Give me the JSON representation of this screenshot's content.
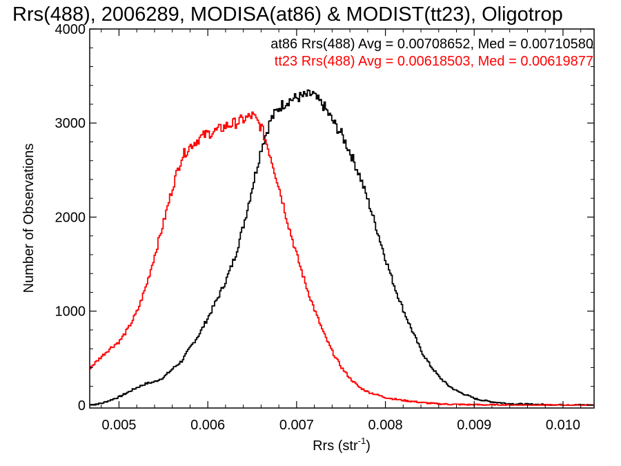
{
  "chart_data": {
    "type": "line",
    "title": "Rrs(488), 2006289, MODISA(at86) & MODIST(tt23), Oligotrop",
    "xlabel": "Rrs (str",
    "xlabel_sup": "-1",
    "xlabel_close": ")",
    "ylabel": "Number of Observations",
    "xlim": [
      0.00467,
      0.01035
    ],
    "ylim": [
      -30,
      4000
    ],
    "x_ticks": [
      "0.005",
      "0.006",
      "0.007",
      "0.008",
      "0.009",
      "0.010"
    ],
    "x_tick_values": [
      0.005,
      0.006,
      0.007,
      0.008,
      0.009,
      0.01
    ],
    "y_ticks": [
      "0",
      "1000",
      "2000",
      "3000",
      "4000"
    ],
    "y_tick_values": [
      0,
      1000,
      2000,
      3000,
      4000
    ],
    "grid": false,
    "legend": "top-right",
    "annotations": [
      {
        "text": "at86 Rrs(488) Avg = 0.00708652, Med = 0.00710580",
        "color": "#000000"
      },
      {
        "text": "tt23 Rrs(488) Avg = 0.00618503, Med = 0.00619877",
        "color": "#ff0000"
      }
    ],
    "series": [
      {
        "color": "#000000",
        "x": [
          0.00467,
          0.0048,
          0.005,
          0.0052,
          0.0053,
          0.0054,
          0.0055,
          0.0056,
          0.0057,
          0.0058,
          0.0059,
          0.006,
          0.0061,
          0.0062,
          0.0063,
          0.0064,
          0.0065,
          0.0066,
          0.0067,
          0.0068,
          0.0069,
          0.007,
          0.0071,
          0.00718,
          0.0072,
          0.0073,
          0.0074,
          0.0075,
          0.0076,
          0.0077,
          0.0078,
          0.0079,
          0.008,
          0.0081,
          0.0082,
          0.0083,
          0.0084,
          0.0085,
          0.0086,
          0.0087,
          0.0088,
          0.0089,
          0.009,
          0.0091,
          0.0092,
          0.0093,
          0.0094,
          0.0096,
          0.0098,
          0.01,
          0.01035
        ],
        "y": [
          5,
          20,
          90,
          190,
          230,
          250,
          300,
          390,
          470,
          620,
          760,
          940,
          1130,
          1330,
          1580,
          1930,
          2340,
          2750,
          3030,
          3170,
          3240,
          3270,
          3290,
          3310,
          3270,
          3180,
          3020,
          2880,
          2680,
          2450,
          2170,
          1860,
          1540,
          1250,
          1000,
          780,
          570,
          420,
          300,
          210,
          150,
          110,
          70,
          50,
          35,
          25,
          15,
          10,
          5,
          3,
          2
        ]
      },
      {
        "color": "#ff0000",
        "x": [
          0.00467,
          0.0048,
          0.0049,
          0.005,
          0.0051,
          0.0052,
          0.0053,
          0.0054,
          0.0055,
          0.0056,
          0.0057,
          0.0058,
          0.0059,
          0.006,
          0.0061,
          0.0062,
          0.0063,
          0.0064,
          0.0065,
          0.0066,
          0.0067,
          0.0068,
          0.0069,
          0.007,
          0.0071,
          0.0072,
          0.0073,
          0.0074,
          0.0075,
          0.0076,
          0.0077,
          0.0078,
          0.0079,
          0.008,
          0.0081,
          0.0082,
          0.0083,
          0.0084,
          0.0085,
          0.0086,
          0.0087,
          0.0088,
          0.0089,
          0.009,
          0.0092,
          0.0094,
          0.0096,
          0.0098,
          0.01,
          0.01035
        ],
        "y": [
          400,
          520,
          610,
          680,
          820,
          1000,
          1270,
          1610,
          1960,
          2330,
          2640,
          2760,
          2840,
          2890,
          2920,
          2970,
          3000,
          3040,
          3080,
          2950,
          2650,
          2300,
          1920,
          1580,
          1270,
          1000,
          760,
          560,
          400,
          280,
          190,
          140,
          110,
          80,
          65,
          50,
          40,
          28,
          20,
          14,
          10,
          8,
          6,
          5,
          3,
          2,
          1,
          1,
          0,
          0
        ]
      }
    ]
  }
}
